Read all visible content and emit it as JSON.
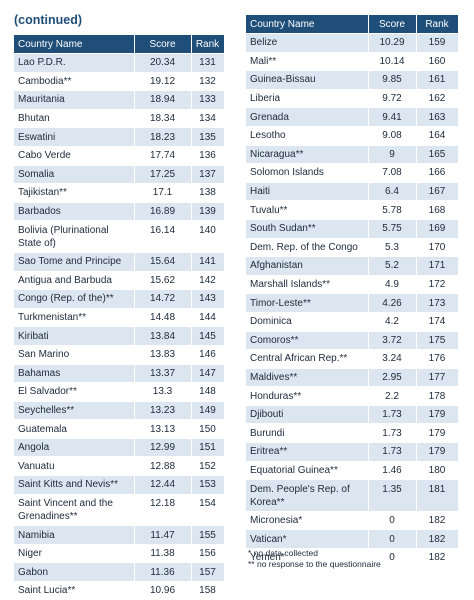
{
  "left": {
    "title": "(continued)",
    "header": [
      "Country Name",
      "Score",
      "Rank"
    ],
    "rows": [
      [
        "Lao P.D.R.",
        "20.34",
        "131"
      ],
      [
        "Cambodia**",
        "19.12",
        "132"
      ],
      [
        "Mauritania",
        "18.94",
        "133"
      ],
      [
        "Bhutan",
        "18.34",
        "134"
      ],
      [
        "Eswatini",
        "18.23",
        "135"
      ],
      [
        "Cabo Verde",
        "17.74",
        "136"
      ],
      [
        "Somalia",
        "17.25",
        "137"
      ],
      [
        "Tajikistan**",
        "17.1",
        "138"
      ],
      [
        "Barbados",
        "16.89",
        "139"
      ],
      [
        "Bolivia (Plurinational State of)",
        "16.14",
        "140"
      ],
      [
        "Sao Tome and Principe",
        "15.64",
        "141"
      ],
      [
        "Antigua and Barbuda",
        "15.62",
        "142"
      ],
      [
        "Congo (Rep. of the)**",
        "14.72",
        "143"
      ],
      [
        "Turkmenistan**",
        "14.48",
        "144"
      ],
      [
        "Kiribati",
        "13.84",
        "145"
      ],
      [
        "San Marino",
        "13.83",
        "146"
      ],
      [
        "Bahamas",
        "13.37",
        "147"
      ],
      [
        "El Salvador**",
        "13.3",
        "148"
      ],
      [
        "Seychelles**",
        "13.23",
        "149"
      ],
      [
        "Guatemala",
        "13.13",
        "150"
      ],
      [
        "Angola",
        "12.99",
        "151"
      ],
      [
        "Vanuatu",
        "12.88",
        "152"
      ],
      [
        "Saint Kitts and Nevis**",
        "12.44",
        "153"
      ],
      [
        "Saint Vincent and the Grenadines**",
        "12.18",
        "154"
      ],
      [
        "Namibia",
        "11.47",
        "155"
      ],
      [
        "Niger",
        "11.38",
        "156"
      ],
      [
        "Gabon",
        "11.36",
        "157"
      ],
      [
        "Saint Lucia**",
        "10.96",
        "158"
      ]
    ]
  },
  "right": {
    "header": [
      "Country Name",
      "Score",
      "Rank"
    ],
    "rows": [
      [
        "Belize",
        "10.29",
        "159"
      ],
      [
        "Mali**",
        "10.14",
        "160"
      ],
      [
        "Guinea-Bissau",
        "9.85",
        "161"
      ],
      [
        "Liberia",
        "9.72",
        "162"
      ],
      [
        "Grenada",
        "9.41",
        "163"
      ],
      [
        "Lesotho",
        "9.08",
        "164"
      ],
      [
        "Nicaragua**",
        "9",
        "165"
      ],
      [
        "Solomon Islands",
        "7.08",
        "166"
      ],
      [
        "Haiti",
        "6.4",
        "167"
      ],
      [
        "Tuvalu**",
        "5.78",
        "168"
      ],
      [
        "South Sudan**",
        "5.75",
        "169"
      ],
      [
        "Dem. Rep. of the Congo",
        "5.3",
        "170"
      ],
      [
        "Afghanistan",
        "5.2",
        "171"
      ],
      [
        "Marshall Islands**",
        "4.9",
        "172"
      ],
      [
        "Timor-Leste**",
        "4.26",
        "173"
      ],
      [
        "Dominica",
        "4.2",
        "174"
      ],
      [
        "Comoros**",
        "3.72",
        "175"
      ],
      [
        "Central African Rep.**",
        "3.24",
        "176"
      ],
      [
        "Maldives**",
        "2.95",
        "177"
      ],
      [
        "Honduras**",
        "2.2",
        "178"
      ],
      [
        "Djibouti",
        "1.73",
        "179"
      ],
      [
        "Burundi",
        "1.73",
        "179"
      ],
      [
        "Eritrea**",
        "1.73",
        "179"
      ],
      [
        "Equatorial Guinea**",
        "1.46",
        "180"
      ],
      [
        "Dem. People's Rep. of Korea**",
        "1.35",
        "181"
      ],
      [
        "Micronesia*",
        "0",
        "182"
      ],
      [
        "Vatican*",
        "0",
        "182"
      ],
      [
        "Yemen*",
        "0",
        "182"
      ]
    ],
    "footnotes": [
      "* no data collected",
      "** no response to the questionnaire"
    ]
  }
}
